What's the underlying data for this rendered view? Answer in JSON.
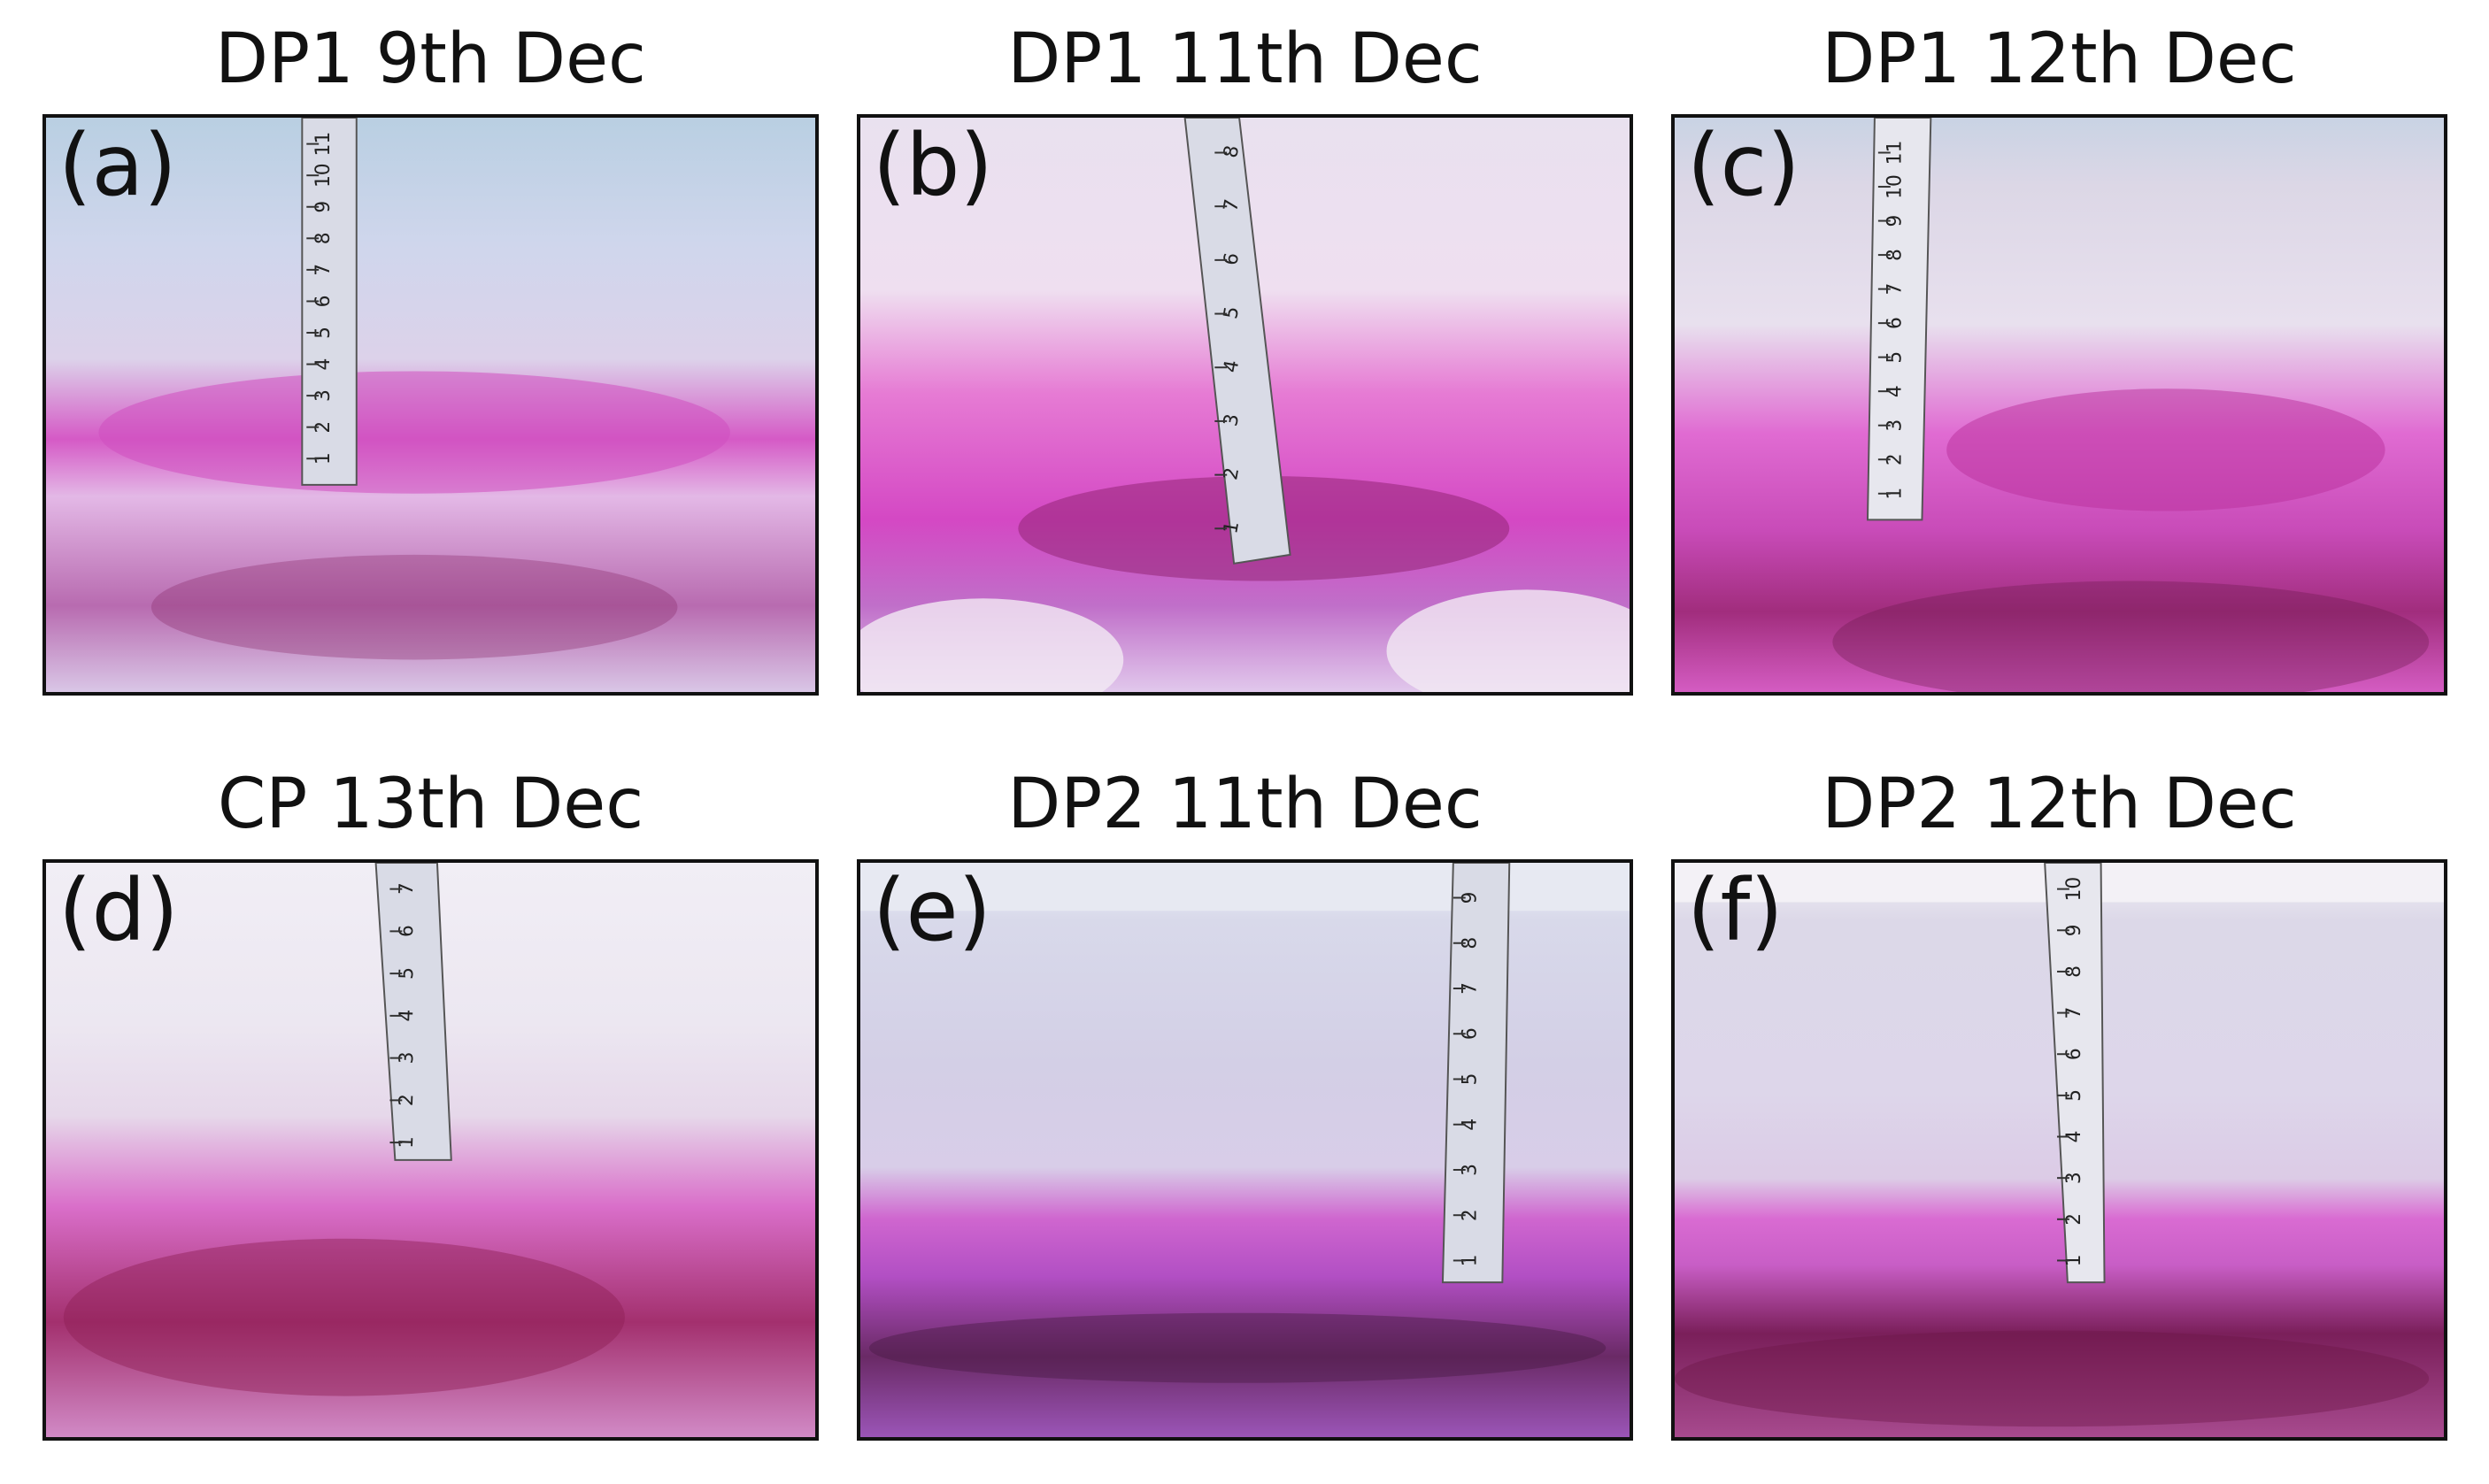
{
  "panels": [
    {
      "label": "(a)",
      "title": "DP1 9th Dec",
      "ruler_marks": [
        "1",
        "2",
        "3",
        "4",
        "5",
        "6",
        "7",
        "8",
        "9",
        "10",
        "11"
      ]
    },
    {
      "label": "(b)",
      "title": "DP1 11th Dec",
      "ruler_marks": [
        "1",
        "2",
        "3",
        "4",
        "5",
        "6",
        "7",
        "8"
      ]
    },
    {
      "label": "(c)",
      "title": "DP1 12th Dec",
      "ruler_marks": [
        "1",
        "2",
        "3",
        "4",
        "5",
        "6",
        "7",
        "8",
        "9",
        "10",
        "11"
      ]
    },
    {
      "label": "(d)",
      "title": "CP 13th Dec",
      "ruler_marks": [
        "1",
        "2",
        "3",
        "4",
        "5",
        "6",
        "7"
      ]
    },
    {
      "label": "(e)",
      "title": "DP2 11th Dec",
      "ruler_marks": [
        "1",
        "2",
        "3",
        "4",
        "5",
        "6",
        "7",
        "8",
        "9"
      ]
    },
    {
      "label": "(f)",
      "title": "DP2 12th Dec",
      "ruler_marks": [
        "1",
        "2",
        "3",
        "4",
        "5",
        "6",
        "7",
        "8",
        "9",
        "10"
      ]
    }
  ],
  "colors": {
    "snow": "#e6dff0",
    "sky": "#b9cfe2",
    "dye_pink": "#d94fc8",
    "dye_dark": "#7a1a55",
    "ruler": "#d9dbe6"
  }
}
